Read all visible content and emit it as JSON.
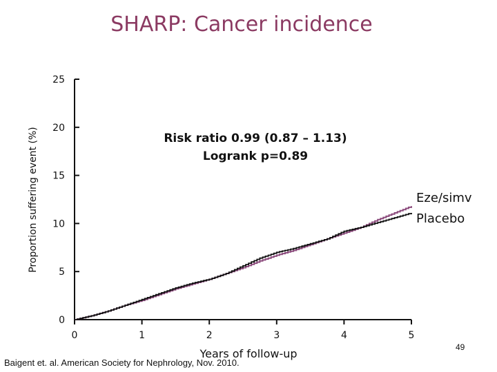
{
  "slide": {
    "title": "SHARP: Cancer incidence",
    "annotation_line1": "Risk ratio 0.99 (0.87 – 1.13)",
    "annotation_line2": "Logrank p=0.89",
    "citation": "Baigent et. al. American Society for Nephrology, Nov. 2010.",
    "page_number": "49"
  },
  "chart_data": {
    "type": "line",
    "title": "SHARP: Cancer incidence",
    "xlabel": "Years of follow-up",
    "ylabel": "Proportion suffering event (%)",
    "xlim": [
      0,
      5
    ],
    "ylim": [
      0,
      25
    ],
    "xticks": [
      0,
      1,
      2,
      3,
      4,
      5
    ],
    "yticks": [
      0,
      5,
      10,
      15,
      20,
      25
    ],
    "grid": false,
    "legend": "inline-right",
    "series": [
      {
        "name": "Eze/simv",
        "color": "#8b4a7c",
        "x": [
          0,
          0.25,
          0.5,
          0.75,
          1.0,
          1.25,
          1.5,
          1.75,
          2.0,
          2.25,
          2.5,
          2.75,
          3.0,
          3.25,
          3.5,
          3.75,
          4.0,
          4.25,
          4.5,
          4.75,
          5.0
        ],
        "y": [
          0,
          0.4,
          0.9,
          1.5,
          2.0,
          2.6,
          3.2,
          3.7,
          4.2,
          4.8,
          5.4,
          6.1,
          6.7,
          7.2,
          7.8,
          8.4,
          9.0,
          9.6,
          10.4,
          11.1,
          11.8
        ]
      },
      {
        "name": "Placebo",
        "color": "#111111",
        "x": [
          0,
          0.25,
          0.5,
          0.75,
          1.0,
          1.25,
          1.5,
          1.75,
          2.0,
          2.25,
          2.5,
          2.75,
          3.0,
          3.25,
          3.5,
          3.75,
          4.0,
          4.25,
          4.5,
          4.75,
          5.0
        ],
        "y": [
          0,
          0.4,
          0.9,
          1.5,
          2.1,
          2.7,
          3.3,
          3.8,
          4.2,
          4.8,
          5.6,
          6.4,
          7.0,
          7.4,
          7.9,
          8.4,
          9.2,
          9.6,
          10.1,
          10.6,
          11.1
        ]
      }
    ]
  }
}
